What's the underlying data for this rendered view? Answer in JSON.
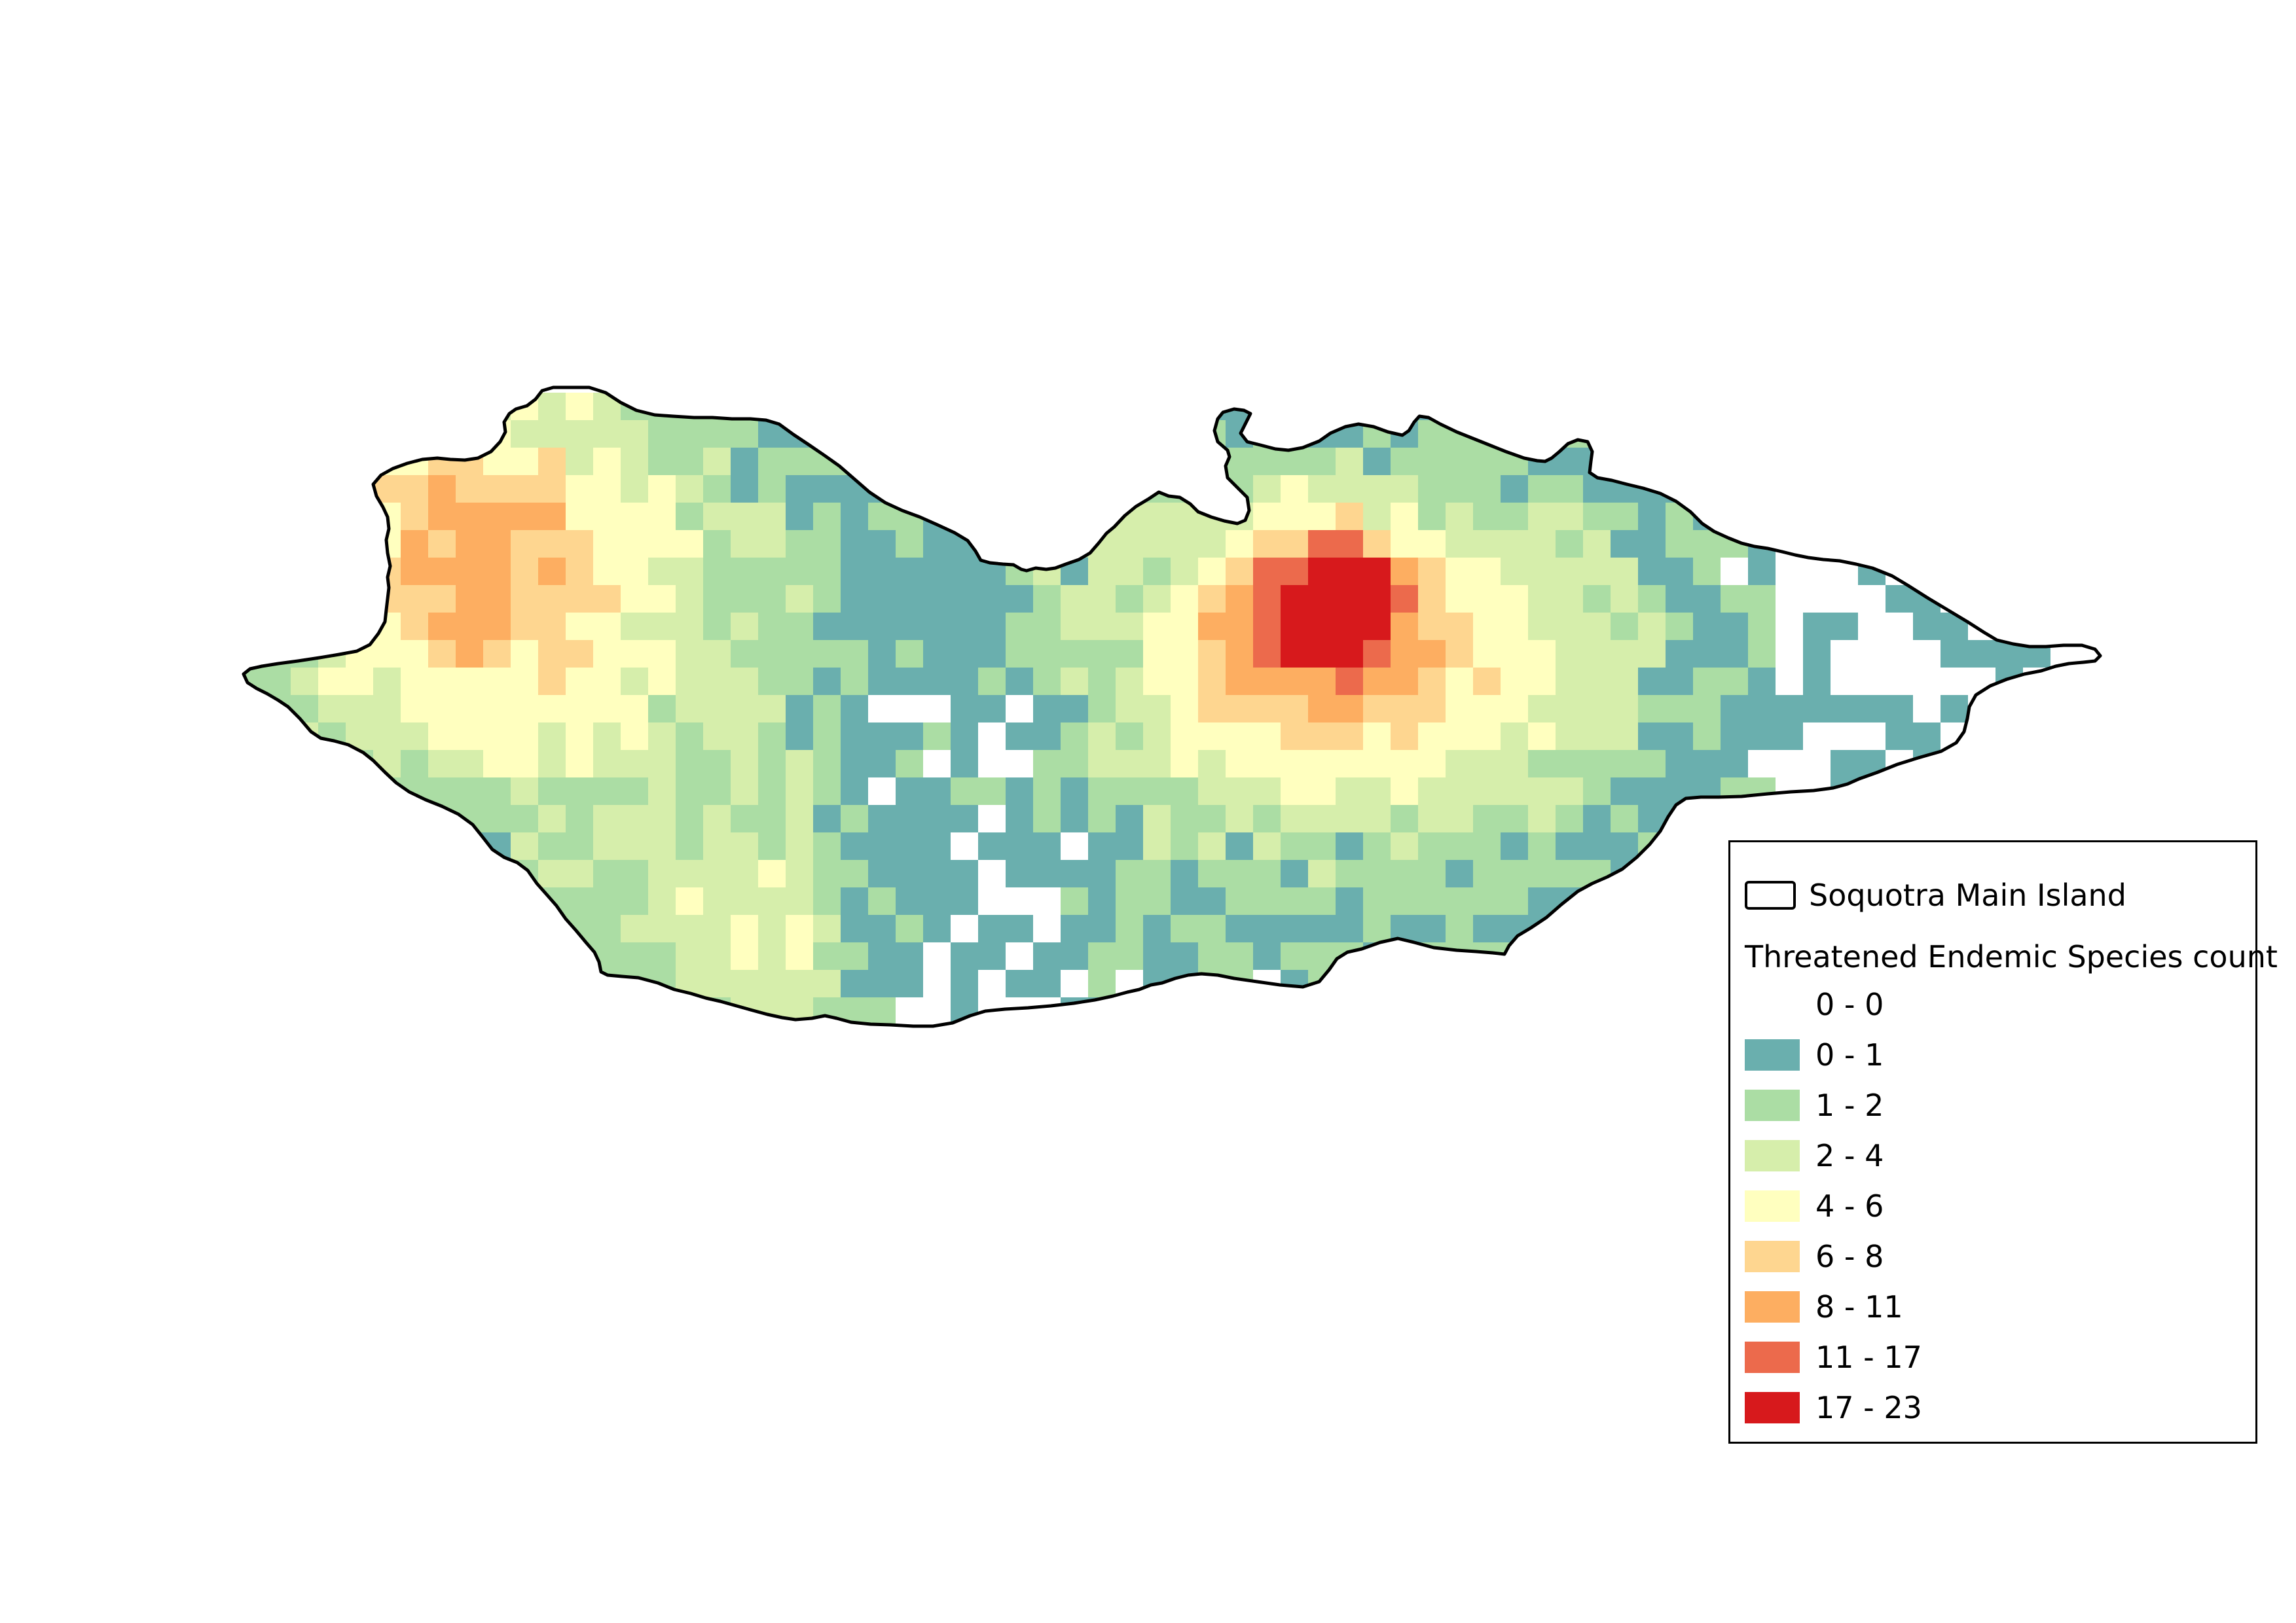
{
  "map": {
    "island_outline_color": "#000000",
    "legend": {
      "outline_label": "Soquotra Main Island",
      "heading": "Threatened Endemic Species count",
      "classes": [
        {
          "label": "0 - 0",
          "color": "#ffffff"
        },
        {
          "label": "0 - 1",
          "color": "#6aafae"
        },
        {
          "label": "1 - 2",
          "color": "#abdda4"
        },
        {
          "label": "2 - 4",
          "color": "#d6eeab"
        },
        {
          "label": "4 - 6",
          "color": "#ffffbf"
        },
        {
          "label": "6 - 8",
          "color": "#fed690"
        },
        {
          "label": "8 - 11",
          "color": "#fdae61"
        },
        {
          "label": "11 - 17",
          "color": "#ec6a4c"
        },
        {
          "label": "17 - 23",
          "color": "#d7191c"
        }
      ]
    }
  }
}
